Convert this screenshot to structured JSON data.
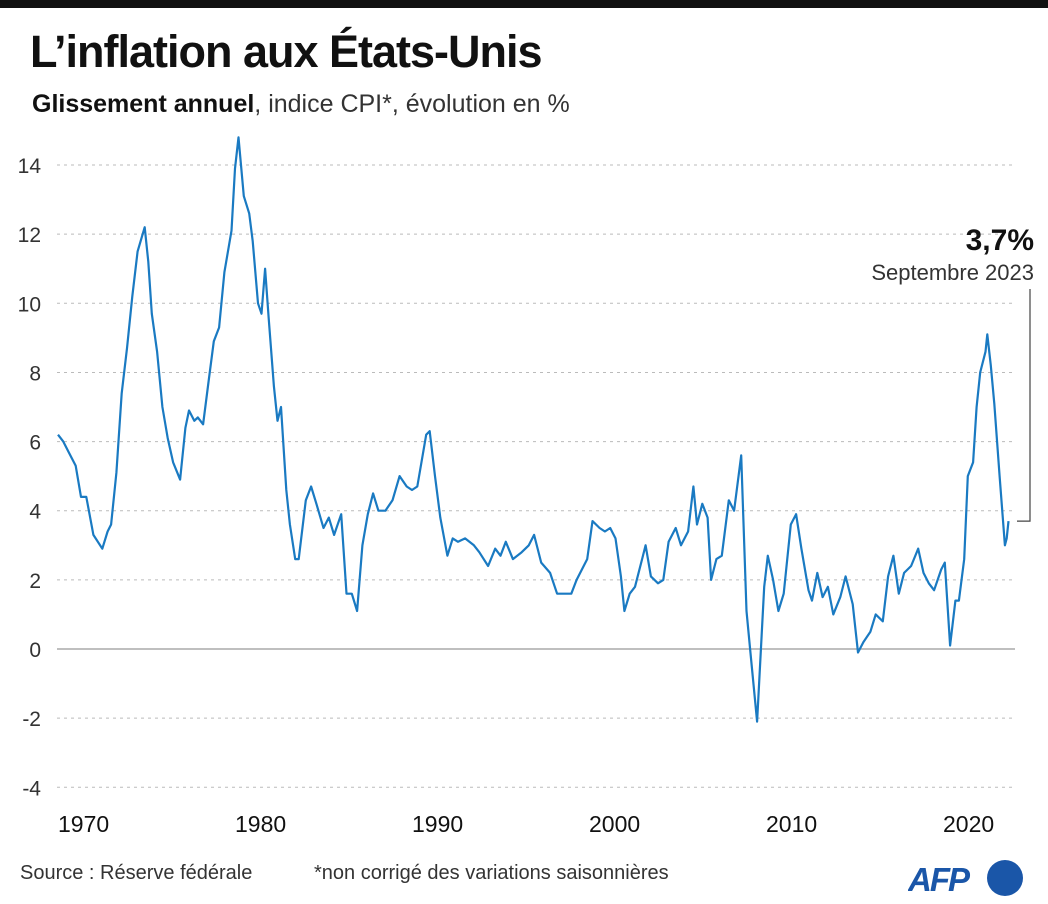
{
  "title": "L’inflation aux États-Unis",
  "subtitle": {
    "bold": "Glissement annuel",
    "rest": ", indice CPI*, évolution en %"
  },
  "annotation": {
    "value": "3,7%",
    "date": "Septembre 2023"
  },
  "footer": {
    "source": "Source : Réserve fédérale",
    "note": "*non corrigé des variations saisonnières"
  },
  "logo": {
    "text": "AFP",
    "color": "#1a56a8"
  },
  "colors": {
    "line": "#1a7ac2",
    "grid": "#bbbbbb",
    "zero": "#999999"
  },
  "chart_data": {
    "type": "line",
    "title": "L’inflation aux États-Unis",
    "subtitle": "Glissement annuel, indice CPI*, évolution en %",
    "xlabel": "",
    "ylabel": "",
    "ylim": [
      -4,
      15
    ],
    "xlim": [
      1970,
      2024
    ],
    "yticks": [
      -4,
      -2,
      0,
      2,
      4,
      6,
      8,
      10,
      12,
      14
    ],
    "xticks": [
      1970,
      1980,
      1990,
      2000,
      2010,
      2020
    ],
    "grid": true,
    "x": [
      1970.0,
      1970.3,
      1970.6,
      1971.0,
      1971.3,
      1971.6,
      1972.0,
      1972.5,
      1972.8,
      1973.0,
      1973.3,
      1973.6,
      1973.9,
      1974.2,
      1974.5,
      1974.9,
      1975.1,
      1975.3,
      1975.6,
      1975.9,
      1976.2,
      1976.5,
      1976.9,
      1977.2,
      1977.4,
      1977.7,
      1977.9,
      1978.2,
      1978.5,
      1978.8,
      1979.1,
      1979.4,
      1979.8,
      1980.0,
      1980.2,
      1980.5,
      1980.8,
      1981.0,
      1981.3,
      1981.5,
      1981.7,
      1981.9,
      1982.2,
      1982.4,
      1982.6,
      1982.9,
      1983.1,
      1983.4,
      1983.6,
      1984.0,
      1984.3,
      1984.6,
      1985.0,
      1985.3,
      1985.6,
      1986.0,
      1986.3,
      1986.6,
      1986.9,
      1987.2,
      1987.5,
      1987.8,
      1988.1,
      1988.5,
      1988.9,
      1989.3,
      1989.7,
      1990.0,
      1990.3,
      1990.8,
      1991.0,
      1991.3,
      1991.6,
      1992.0,
      1992.3,
      1992.6,
      1993.0,
      1993.5,
      1993.8,
      1994.3,
      1994.7,
      1995.0,
      1995.3,
      1995.7,
      1996.2,
      1996.6,
      1996.9,
      1997.3,
      1997.8,
      1998.2,
      1998.6,
      1999.0,
      1999.3,
      1999.6,
      1999.9,
      2000.2,
      2000.6,
      2000.9,
      2001.2,
      2001.5,
      2001.8,
      2002.0,
      2002.3,
      2002.6,
      2003.0,
      2003.2,
      2003.5,
      2003.9,
      2004.2,
      2004.5,
      2004.9,
      2005.2,
      2005.6,
      2005.9,
      2006.1,
      2006.4,
      2006.7,
      2006.9,
      2007.2,
      2007.5,
      2007.9,
      2008.2,
      2008.6,
      2008.9,
      2009.1,
      2009.5,
      2009.9,
      2010.1,
      2010.4,
      2010.7,
      2011.0,
      2011.4,
      2011.7,
      2012.0,
      2012.4,
      2012.6,
      2012.9,
      2013.2,
      2013.5,
      2013.8,
      2014.2,
      2014.5,
      2014.9,
      2015.2,
      2015.5,
      2015.9,
      2016.2,
      2016.6,
      2016.9,
      2017.2,
      2017.5,
      2017.8,
      2018.2,
      2018.6,
      2018.9,
      2019.2,
      2019.5,
      2019.9,
      2020.1,
      2020.4,
      2020.7,
      2020.9,
      2021.2,
      2021.4,
      2021.7,
      2021.9,
      2022.1,
      2022.4,
      2022.5,
      2022.7,
      2022.9,
      2023.2,
      2023.5,
      2023.6,
      2023.7
    ],
    "series": [
      {
        "values": [
          6.2,
          6.0,
          5.7,
          5.3,
          4.4,
          4.4,
          3.3,
          2.9,
          3.4,
          3.6,
          5.1,
          7.4,
          8.7,
          10.2,
          11.5,
          12.2,
          11.2,
          9.7,
          8.6,
          7.0,
          6.1,
          5.4,
          4.9,
          6.4,
          6.9,
          6.6,
          6.7,
          6.5,
          7.7,
          8.9,
          9.3,
          10.9,
          12.1,
          13.9,
          14.8,
          13.1,
          12.6,
          11.8,
          10.0,
          9.7,
          11.0,
          9.6,
          7.6,
          6.6,
          7.0,
          4.6,
          3.6,
          2.6,
          2.6,
          4.3,
          4.7,
          4.2,
          3.5,
          3.8,
          3.3,
          3.9,
          1.6,
          1.6,
          1.1,
          3.0,
          3.9,
          4.5,
          4.0,
          4.0,
          4.3,
          5.0,
          4.7,
          4.6,
          4.7,
          6.2,
          6.3,
          5.0,
          3.8,
          2.7,
          3.2,
          3.1,
          3.2,
          3.0,
          2.8,
          2.4,
          2.9,
          2.7,
          3.1,
          2.6,
          2.8,
          3.0,
          3.3,
          2.5,
          2.2,
          1.6,
          1.6,
          1.6,
          2.0,
          2.3,
          2.6,
          3.7,
          3.5,
          3.4,
          3.5,
          3.2,
          2.1,
          1.1,
          1.6,
          1.8,
          2.6,
          3.0,
          2.1,
          1.9,
          2.0,
          3.1,
          3.5,
          3.0,
          3.4,
          4.7,
          3.6,
          4.2,
          3.8,
          2.0,
          2.6,
          2.7,
          4.3,
          4.0,
          5.6,
          1.1,
          0.0,
          -2.1,
          1.8,
          2.7,
          2.0,
          1.1,
          1.6,
          3.6,
          3.9,
          2.9,
          1.7,
          1.4,
          2.2,
          1.5,
          1.8,
          1.0,
          1.5,
          2.1,
          1.3,
          -0.1,
          0.2,
          0.5,
          1.0,
          0.8,
          2.1,
          2.7,
          1.6,
          2.2,
          2.4,
          2.9,
          2.2,
          1.9,
          1.7,
          2.3,
          2.5,
          0.1,
          1.4,
          1.4,
          2.6,
          5.0,
          5.4,
          7.0,
          8.0,
          8.6,
          9.1,
          8.2,
          7.1,
          5.0,
          3.0,
          3.2,
          3.7
        ]
      }
    ],
    "annotations": [
      {
        "text": "3,7%",
        "detail": "Septembre 2023",
        "x": 2023.7,
        "y": 3.7
      }
    ]
  }
}
